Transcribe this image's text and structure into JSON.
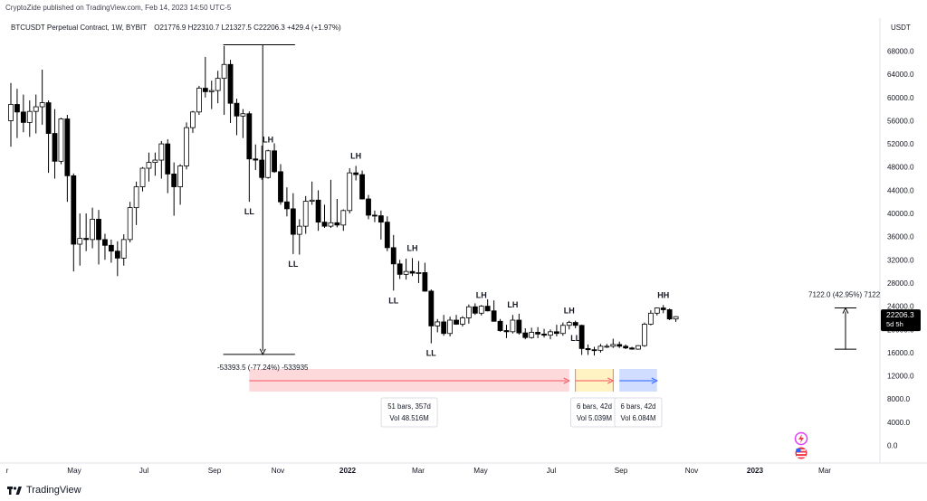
{
  "header": {
    "published_by": "CryptoZide published on TradingView.com, Feb 14, 2023 14:50 UTC-5",
    "symbol": "BTCUSDT Perpetual Contract, 1W, BYBIT",
    "ohlc": "O21776.9  H22310.7  L21327.5  C22206.3  +429.4 (+1.97%)",
    "currency": "USDT"
  },
  "footer": {
    "brand": "TradingView"
  },
  "price_tag": {
    "price": "22206.3",
    "countdown": "5d 5h"
  },
  "colors": {
    "up": "#ffffff",
    "down": "#000000",
    "red_zone": "#f7525f",
    "yellow_zone": "#ffeb9c",
    "blue_zone": "#2962ff",
    "axis_text": "#131722"
  },
  "chart_data": {
    "type": "candlestick",
    "timeframe": "1W",
    "y_axis": {
      "range": [
        -2000,
        72000
      ],
      "ticks": [
        "68000.0",
        "64000.0",
        "60000.0",
        "56000.0",
        "52000.0",
        "48000.0",
        "44000.0",
        "40000.0",
        "36000.0",
        "32000.0",
        "28000.0",
        "24000.0",
        "20000.0",
        "16000.0",
        "12000.0",
        "8000.0",
        "4000.0",
        "0.0"
      ]
    },
    "x_axis": {
      "labels": [
        "r",
        "May",
        "Jul",
        "Sep",
        "Nov",
        "2022",
        "Mar",
        "May",
        "Jul",
        "Sep",
        "Nov",
        "2023",
        "Mar"
      ]
    },
    "candles": [
      {
        "o": 56000,
        "h": 62500,
        "l": 51500,
        "c": 58800
      },
      {
        "o": 58800,
        "h": 61500,
        "l": 53000,
        "c": 57500
      },
      {
        "o": 57500,
        "h": 60500,
        "l": 54000,
        "c": 55700
      },
      {
        "o": 55700,
        "h": 59500,
        "l": 53200,
        "c": 57600
      },
      {
        "o": 57600,
        "h": 60500,
        "l": 53800,
        "c": 58400
      },
      {
        "o": 58400,
        "h": 64800,
        "l": 55300,
        "c": 59100
      },
      {
        "o": 59100,
        "h": 59500,
        "l": 47000,
        "c": 53800
      },
      {
        "o": 53800,
        "h": 58000,
        "l": 46000,
        "c": 49000
      },
      {
        "o": 49000,
        "h": 56500,
        "l": 48500,
        "c": 56300
      },
      {
        "o": 56300,
        "h": 57000,
        "l": 42000,
        "c": 46500
      },
      {
        "o": 46500,
        "h": 46900,
        "l": 30000,
        "c": 34700
      },
      {
        "o": 34700,
        "h": 40000,
        "l": 31000,
        "c": 35700
      },
      {
        "o": 35700,
        "h": 40000,
        "l": 33500,
        "c": 35500
      },
      {
        "o": 35500,
        "h": 41000,
        "l": 34000,
        "c": 39000
      },
      {
        "o": 39000,
        "h": 40600,
        "l": 31200,
        "c": 35500
      },
      {
        "o": 35500,
        "h": 36500,
        "l": 32000,
        "c": 34500
      },
      {
        "o": 34500,
        "h": 35500,
        "l": 31500,
        "c": 33500
      },
      {
        "o": 33500,
        "h": 35200,
        "l": 29200,
        "c": 32300
      },
      {
        "o": 32300,
        "h": 36400,
        "l": 31000,
        "c": 35500
      },
      {
        "o": 35500,
        "h": 42000,
        "l": 35000,
        "c": 41000
      },
      {
        "o": 41000,
        "h": 45500,
        "l": 38000,
        "c": 44600
      },
      {
        "o": 44600,
        "h": 48000,
        "l": 43800,
        "c": 47800
      },
      {
        "o": 47800,
        "h": 50500,
        "l": 45500,
        "c": 48800
      },
      {
        "o": 48800,
        "h": 50500,
        "l": 46500,
        "c": 49200
      },
      {
        "o": 49200,
        "h": 52500,
        "l": 46000,
        "c": 52000
      },
      {
        "o": 52000,
        "h": 52800,
        "l": 43500,
        "c": 46800
      },
      {
        "o": 46800,
        "h": 48800,
        "l": 39600,
        "c": 44600
      },
      {
        "o": 44600,
        "h": 48500,
        "l": 41500,
        "c": 48200
      },
      {
        "o": 48200,
        "h": 55700,
        "l": 47600,
        "c": 54800
      },
      {
        "o": 54800,
        "h": 57700,
        "l": 53900,
        "c": 57500
      },
      {
        "o": 57500,
        "h": 62000,
        "l": 57000,
        "c": 61600
      },
      {
        "o": 61600,
        "h": 67000,
        "l": 60000,
        "c": 61000
      },
      {
        "o": 61000,
        "h": 62900,
        "l": 58000,
        "c": 61200
      },
      {
        "o": 61200,
        "h": 64600,
        "l": 59000,
        "c": 63300
      },
      {
        "o": 63300,
        "h": 68900,
        "l": 57000,
        "c": 65700
      },
      {
        "o": 65700,
        "h": 66500,
        "l": 55600,
        "c": 59000
      },
      {
        "o": 59000,
        "h": 59800,
        "l": 53500,
        "c": 56800
      },
      {
        "o": 56800,
        "h": 58000,
        "l": 53000,
        "c": 57200
      },
      {
        "o": 57200,
        "h": 57600,
        "l": 42000,
        "c": 49400
      },
      {
        "o": 49400,
        "h": 51900,
        "l": 47500,
        "c": 49200
      },
      {
        "o": 49200,
        "h": 51700,
        "l": 45800,
        "c": 46200
      },
      {
        "o": 46200,
        "h": 51000,
        "l": 46000,
        "c": 50800
      },
      {
        "o": 50800,
        "h": 52100,
        "l": 47000,
        "c": 47200
      },
      {
        "o": 47200,
        "h": 48500,
        "l": 41500,
        "c": 42000
      },
      {
        "o": 42000,
        "h": 44500,
        "l": 39500,
        "c": 40800
      },
      {
        "o": 40800,
        "h": 43500,
        "l": 33000,
        "c": 36400
      },
      {
        "o": 36400,
        "h": 39000,
        "l": 32900,
        "c": 37800
      },
      {
        "o": 37800,
        "h": 43000,
        "l": 36500,
        "c": 42100
      },
      {
        "o": 42100,
        "h": 45500,
        "l": 41500,
        "c": 42300
      },
      {
        "o": 42300,
        "h": 44000,
        "l": 37000,
        "c": 38500
      },
      {
        "o": 38500,
        "h": 41500,
        "l": 37500,
        "c": 37800
      },
      {
        "o": 37800,
        "h": 45800,
        "l": 37500,
        "c": 38400
      },
      {
        "o": 38400,
        "h": 42500,
        "l": 37600,
        "c": 38000
      },
      {
        "o": 38000,
        "h": 40700,
        "l": 37000,
        "c": 40500
      },
      {
        "o": 40500,
        "h": 47800,
        "l": 40000,
        "c": 47000
      },
      {
        "o": 47000,
        "h": 48200,
        "l": 45700,
        "c": 46700
      },
      {
        "o": 46700,
        "h": 47400,
        "l": 42400,
        "c": 42500
      },
      {
        "o": 42500,
        "h": 43200,
        "l": 39000,
        "c": 39700
      },
      {
        "o": 39700,
        "h": 40500,
        "l": 38500,
        "c": 39600
      },
      {
        "o": 39600,
        "h": 40500,
        "l": 35500,
        "c": 38500
      },
      {
        "o": 38500,
        "h": 39500,
        "l": 33500,
        "c": 34100
      },
      {
        "o": 34100,
        "h": 36300,
        "l": 26700,
        "c": 31300
      },
      {
        "o": 31300,
        "h": 32000,
        "l": 28700,
        "c": 29500
      },
      {
        "o": 29500,
        "h": 32200,
        "l": 28600,
        "c": 30000
      },
      {
        "o": 30000,
        "h": 32300,
        "l": 29200,
        "c": 29700
      },
      {
        "o": 29700,
        "h": 31800,
        "l": 28000,
        "c": 29800
      },
      {
        "o": 29800,
        "h": 31500,
        "l": 26500,
        "c": 26600
      },
      {
        "o": 26600,
        "h": 26900,
        "l": 17600,
        "c": 20600
      },
      {
        "o": 20600,
        "h": 21800,
        "l": 19500,
        "c": 21300
      },
      {
        "o": 21300,
        "h": 22500,
        "l": 18900,
        "c": 19300
      },
      {
        "o": 19300,
        "h": 22200,
        "l": 18800,
        "c": 21600
      },
      {
        "o": 21600,
        "h": 22500,
        "l": 20800,
        "c": 20900
      },
      {
        "o": 20900,
        "h": 22300,
        "l": 20500,
        "c": 22000
      },
      {
        "o": 22000,
        "h": 24300,
        "l": 21000,
        "c": 23900
      },
      {
        "o": 23900,
        "h": 24500,
        "l": 22500,
        "c": 22800
      },
      {
        "o": 22800,
        "h": 24200,
        "l": 22400,
        "c": 24000
      },
      {
        "o": 24000,
        "h": 25200,
        "l": 23100,
        "c": 23200
      },
      {
        "o": 23200,
        "h": 25000,
        "l": 21800,
        "c": 21400
      },
      {
        "o": 21400,
        "h": 21800,
        "l": 19600,
        "c": 19800
      },
      {
        "o": 19800,
        "h": 20800,
        "l": 18500,
        "c": 19600
      },
      {
        "o": 19600,
        "h": 22500,
        "l": 19300,
        "c": 21600
      },
      {
        "o": 21600,
        "h": 22700,
        "l": 19100,
        "c": 19400
      },
      {
        "o": 19400,
        "h": 20200,
        "l": 18300,
        "c": 18600
      },
      {
        "o": 18600,
        "h": 20300,
        "l": 18400,
        "c": 19500
      },
      {
        "o": 19500,
        "h": 20400,
        "l": 18500,
        "c": 19200
      },
      {
        "o": 19200,
        "h": 20100,
        "l": 18600,
        "c": 19000
      },
      {
        "o": 19000,
        "h": 20000,
        "l": 18300,
        "c": 19600
      },
      {
        "o": 19600,
        "h": 20800,
        "l": 18800,
        "c": 19300
      },
      {
        "o": 19300,
        "h": 21200,
        "l": 18900,
        "c": 20700
      },
      {
        "o": 20700,
        "h": 21500,
        "l": 20000,
        "c": 21200
      },
      {
        "o": 21200,
        "h": 21500,
        "l": 20200,
        "c": 20700
      },
      {
        "o": 20700,
        "h": 20800,
        "l": 15600,
        "c": 16700
      },
      {
        "o": 16700,
        "h": 17400,
        "l": 15600,
        "c": 16500
      },
      {
        "o": 16500,
        "h": 17000,
        "l": 15500,
        "c": 16400
      },
      {
        "o": 16400,
        "h": 17500,
        "l": 16000,
        "c": 17100
      },
      {
        "o": 17100,
        "h": 17500,
        "l": 16800,
        "c": 17100
      },
      {
        "o": 17100,
        "h": 18400,
        "l": 16800,
        "c": 17400
      },
      {
        "o": 17400,
        "h": 17900,
        "l": 16800,
        "c": 17100
      },
      {
        "o": 17100,
        "h": 17400,
        "l": 16600,
        "c": 16800
      },
      {
        "o": 16800,
        "h": 17000,
        "l": 16500,
        "c": 16600
      },
      {
        "o": 16600,
        "h": 17300,
        "l": 16500,
        "c": 17200
      },
      {
        "o": 17200,
        "h": 21200,
        "l": 17000,
        "c": 20900
      },
      {
        "o": 20900,
        "h": 23300,
        "l": 20700,
        "c": 22800
      },
      {
        "o": 22800,
        "h": 23800,
        "l": 22400,
        "c": 23700
      },
      {
        "o": 23700,
        "h": 24200,
        "l": 22800,
        "c": 23400
      },
      {
        "o": 23400,
        "h": 23600,
        "l": 21600,
        "c": 21800
      },
      {
        "o": 21800,
        "h": 22300,
        "l": 21300,
        "c": 22200
      }
    ],
    "pivot_labels": [
      {
        "text": "LL",
        "candle": 38,
        "pos": "below"
      },
      {
        "text": "LH",
        "candle": 41,
        "pos": "above"
      },
      {
        "text": "LL",
        "candle": 45,
        "pos": "below"
      },
      {
        "text": "LH",
        "candle": 55,
        "pos": "above"
      },
      {
        "text": "LL",
        "candle": 61,
        "pos": "below"
      },
      {
        "text": "LH",
        "candle": 64,
        "pos": "above"
      },
      {
        "text": "LL",
        "candle": 67,
        "pos": "below"
      },
      {
        "text": "LH",
        "candle": 75,
        "pos": "above"
      },
      {
        "text": "LH",
        "candle": 80,
        "pos": "above"
      },
      {
        "text": "LH",
        "candle": 89,
        "pos": "above"
      },
      {
        "text": "LL",
        "candle": 90,
        "pos": "below"
      },
      {
        "text": "HH",
        "candle": 104,
        "pos": "above"
      }
    ],
    "measures": [
      {
        "label": "-53393.5 (-77.24%) -533935",
        "from_candle": 34,
        "to_candle": 45,
        "top": 69100,
        "bottom": 15700
      },
      {
        "label": "7122.0 (42.95%) 7122",
        "candle": 110,
        "top": 23700,
        "bottom": 16600
      }
    ],
    "ranges": [
      {
        "line1": "51 bars, 357d",
        "line2": "Vol 48.516M",
        "from_candle": 38,
        "to_candle": 89,
        "zone": "red_zone"
      },
      {
        "line1": "6 bars, 42d",
        "line2": "Vol 5.039M",
        "from_candle": 90,
        "to_candle": 96,
        "zone": "yellow_zone"
      },
      {
        "line1": "6 bars, 42d",
        "line2": "Vol 6.084M",
        "from_candle": 97,
        "to_candle": 103,
        "zone": "blue_zone"
      }
    ]
  }
}
